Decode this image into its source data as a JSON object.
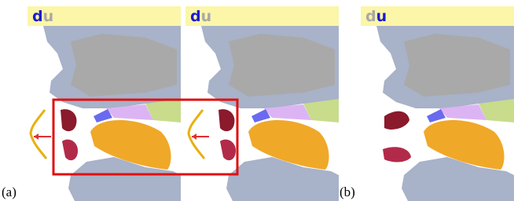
{
  "panels": [
    {
      "syllable": [
        "d",
        "u"
      ],
      "highlight": 0
    },
    {
      "syllable": [
        "d",
        "u"
      ],
      "highlight": 0
    },
    {
      "syllable": [
        "d",
        "u"
      ],
      "highlight": 1
    }
  ],
  "labels": [
    "(a)",
    "(b)"
  ]
}
